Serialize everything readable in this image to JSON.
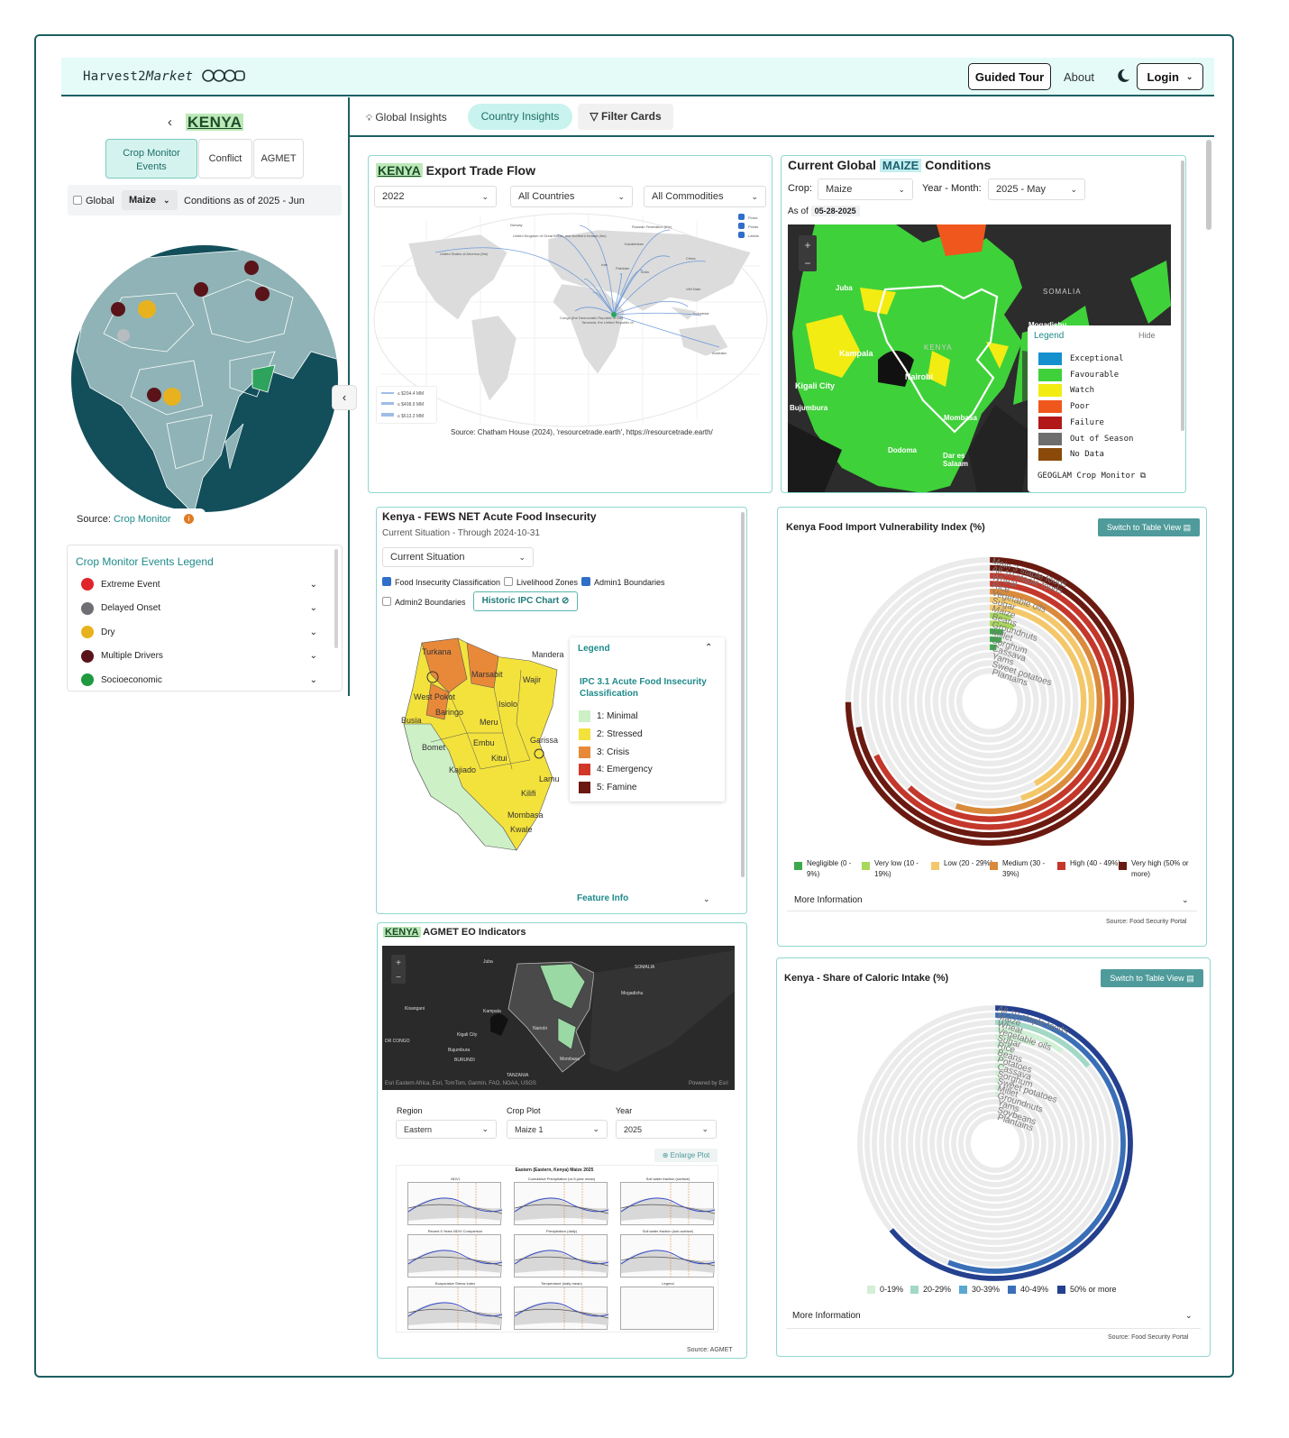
{
  "app": {
    "logo_text": "Harvest2",
    "logo_italic": "Market",
    "guided_tour": "Guided Tour",
    "about": "About",
    "login": "Login"
  },
  "sidebar": {
    "country": "KENYA",
    "tabs": [
      {
        "label": "Crop Monitor Events",
        "active": true
      },
      {
        "label": "Conflict"
      },
      {
        "label": "AGMET"
      }
    ],
    "global_label": "Global",
    "crop_select": "Maize",
    "conditions": "Conditions as of 2025 - Jun",
    "source_label": "Source:",
    "source_link": "Crop Monitor",
    "legend_title": "Crop Monitor Events Legend",
    "legend": [
      {
        "label": "Extreme Event",
        "color": "#e0242b"
      },
      {
        "label": "Delayed Onset",
        "color": "#6e6e73"
      },
      {
        "label": "Dry",
        "color": "#e8b21f"
      },
      {
        "label": "Multiple Drivers",
        "color": "#5a1419"
      },
      {
        "label": "Socioeconomic",
        "color": "#1f9a3e"
      }
    ]
  },
  "tabs": {
    "global": "Global Insights",
    "country": "Country Insights",
    "filter": "Filter Cards"
  },
  "trade": {
    "title_country": "KENYA",
    "title": "Export Trade Flow",
    "year": "2022",
    "countries": "All Countries",
    "commodities": "All Commodities",
    "toggles": [
      "Flows",
      "Points",
      "Labels"
    ],
    "legend": [
      "≤ $204.4 MM",
      "≤ $408.9 MM",
      "≤ $613.3 MM"
    ],
    "places": [
      "Norway",
      "Russian Federation (the)",
      "United Kingdom of Great Britain and Northern Ireland (the)",
      "Kazakhstan",
      "United States of America (the)",
      "China",
      "Pakistan",
      "Iran",
      "India",
      "Viet Nam",
      "Indonesia",
      "Congo (the Democratic Republic of the)",
      "Tanzania, the United Republic of",
      "Australia"
    ],
    "source": "Source: Chatham House (2024), 'resourcetrade.earth', https://resourcetrade.earth/"
  },
  "maize": {
    "title_pre": "Current Global",
    "crop_hl": "MAIZE",
    "title_post": "Conditions",
    "crop_label": "Crop:",
    "crop": "Maize",
    "ym_label": "Year - Month:",
    "ym": "2025 - May",
    "asof_label": "As of",
    "asof": "05-28-2025",
    "legend_title": "Legend",
    "hide": "Hide",
    "legend": [
      {
        "label": "Exceptional",
        "color": "#1490cf"
      },
      {
        "label": "Favourable",
        "color": "#3fd13a"
      },
      {
        "label": "Watch",
        "color": "#f2ec12"
      },
      {
        "label": "Poor",
        "color": "#f0571d"
      },
      {
        "label": "Failure",
        "color": "#b21818"
      },
      {
        "label": "Out of Season",
        "color": "#6d6d6d"
      },
      {
        "label": "No Data",
        "color": "#8b4a0a"
      }
    ],
    "footer": "GEOGLAM Crop Monitor",
    "places": [
      "Juba",
      "SOMALIA",
      "Kampala",
      "KENYA",
      "Nairobi",
      "Kigali City",
      "Mogadishu",
      "Bujumbura",
      "Mombasa",
      "Dodoma",
      "Dar es Salaam"
    ]
  },
  "fews": {
    "title": "Kenya - FEWS NET Acute Food Insecurity",
    "subtitle": "Current Situation - Through 2024-10-31",
    "select": "Current Situation",
    "checks": [
      {
        "label": "Food Insecurity Classification",
        "on": true
      },
      {
        "label": "Livelihood Zones",
        "on": false
      },
      {
        "label": "Admin1 Boundaries",
        "on": true
      },
      {
        "label": "Admin2 Boundaries",
        "on": false
      }
    ],
    "historic": "Historic IPC Chart",
    "legend_title": "Legend",
    "legend_sub": "IPC 3.1 Acute Food Insecurity Classification",
    "legend": [
      {
        "label": "1: Minimal",
        "color": "#cdf0c6"
      },
      {
        "label": "2: Stressed",
        "color": "#f3e23c"
      },
      {
        "label": "3: Crisis",
        "color": "#e8893a"
      },
      {
        "label": "4: Emergency",
        "color": "#d2382a"
      },
      {
        "label": "5: Famine",
        "color": "#6a1810"
      }
    ],
    "feature_info": "Feature Info",
    "places": [
      "Turkana",
      "Marsabit",
      "Mandera",
      "Wajir",
      "West Pokot",
      "Baringo",
      "Isiolo",
      "Busia",
      "Meru",
      "Garissa",
      "Embu",
      "Bomet",
      "Kitui",
      "Kajiado",
      "Lamu",
      "Kilifi",
      "Mombasa",
      "Kwale"
    ]
  },
  "vuln": {
    "title": "Kenya Food Import Vulnerability Index (%)",
    "switch": "Switch to Table View",
    "labels": [
      "Main 3 staple foods",
      "All 10 staple foods",
      "Wheat",
      "Rice",
      "Vegetable oils",
      "Sugar",
      "Maize",
      "Beans",
      "Groundnuts",
      "Millet",
      "Sorghum",
      "Cassava",
      "Yams",
      "Sweet potatoes",
      "Plantains"
    ],
    "legend": [
      {
        "label": "Negligible (0 - 9%)",
        "color": "#3ea84a"
      },
      {
        "label": "Very low (10 - 19%)",
        "color": "#a8d85a"
      },
      {
        "label": "Low (20 - 29%)",
        "color": "#f4c86a"
      },
      {
        "label": "Medium (30 - 39%)",
        "color": "#d98a3b"
      },
      {
        "label": "High (40 - 49%)",
        "color": "#c4372b"
      },
      {
        "label": "Very high (50% or more)",
        "color": "#6a1a10"
      }
    ],
    "more": "More Information",
    "source": "Source: Food Security Portal"
  },
  "caloric": {
    "title": "Kenya - Share of Caloric Intake (%)",
    "switch": "Switch to Table View",
    "labels": [
      "All 10 staple foods",
      "Maize",
      "Wheat",
      "Vegetable oils",
      "Sugar",
      "Rice",
      "Beans",
      "Potatoes",
      "Cassava",
      "Sorghum",
      "Sweet potatoes",
      "Millet",
      "Groundnuts",
      "Yams",
      "Soybeans",
      "Plantains"
    ],
    "legend": [
      {
        "label": "0-19%",
        "color": "#d2f0d6"
      },
      {
        "label": "20-29%",
        "color": "#a2d8c5"
      },
      {
        "label": "30-39%",
        "color": "#5aa8cf"
      },
      {
        "label": "40-49%",
        "color": "#3a6fb8"
      },
      {
        "label": "50% or more",
        "color": "#24408f"
      }
    ],
    "more": "More Information",
    "source": "Source: Food Security Portal"
  },
  "agmet": {
    "title_country": "KENYA",
    "title": "AGMET EO Indicators",
    "map_places": [
      "Juba",
      "SOMALIA",
      "Kisangani",
      "Kampala",
      "Mogadishu",
      "Kigali City",
      "Nairobi",
      "Bujumbura",
      "Mombasa",
      "DR CONGO",
      "TANZANIA",
      "BURUNDI"
    ],
    "attribution": "Esri Eastern Africa, Esri, TomTom, Garmin, FAO, NOAA, USGS",
    "powered": "Powered by Esri",
    "region_label": "Region",
    "region": "Eastern",
    "plot_label": "Crop Plot",
    "plot": "Maize 1",
    "year_label": "Year",
    "year": "2025",
    "enlarge": "Enlarge Plot",
    "plot_title": "Eastern (Eastern, Kenya) Maize 2025",
    "subplots": [
      "NDVI",
      "Cumulative Precipitation (vs 5-year mean)",
      "Soil water fraction (surface)",
      "Recent 5 Years NDVI Comparison",
      "Precipitation (daily)",
      "Soil water fraction (sub-surface)",
      "Evaporative Stress Index",
      "Temperature (daily mean)",
      "Legend"
    ],
    "source": "Source: AGMET"
  }
}
